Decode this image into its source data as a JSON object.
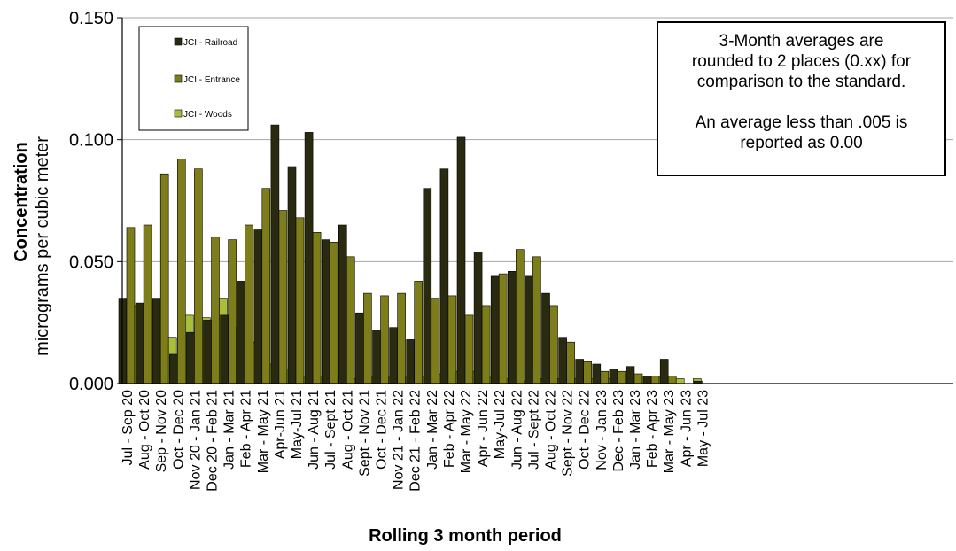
{
  "chart_data": {
    "type": "bar",
    "title": "",
    "xlabel": "Rolling 3 month period",
    "ylabel_bold": "Concentration",
    "ylabel_units": "micrograms per cubic meter",
    "ylim": [
      0,
      0.15
    ],
    "yticks": [
      "0.000",
      "0.050",
      "0.100",
      "0.150"
    ],
    "grid": true,
    "legend_position": "top-left",
    "categories": [
      "Jul - Sep 20",
      "Aug - Oct 20",
      "Sep - Nov 20",
      "Oct - Dec 20",
      "Nov 20 - Jan 21",
      "Dec 20 - Feb 21",
      "Jan - Mar 21",
      "Feb - Apr 21",
      "Mar - May 21",
      "Apr-Jun 21",
      "May-Jul 21",
      "Jun - Aug 21",
      "Jul - Sept 21",
      "Aug - Oct 21",
      "Sept - Nov 21",
      "Oct - Dec 21",
      "Nov 21 - Jan 22",
      "Dec 21 - Feb 22",
      "Jan - Mar 22",
      "Feb - Apr 22",
      "Mar - May 22",
      "Apr - Jun 22",
      "May-Jul 22",
      "Jun - Aug 22",
      "Jul - Sept 22",
      "Aug - Oct 22",
      "Sept - Nov 22",
      "Oct - Dec 22",
      "Nov - Jan 23",
      "Dec - Feb 23",
      "Jan - Mar 23",
      "Feb - Apr 23",
      "Mar - May 23",
      "Apr - Jun 23",
      "May - Jul 23"
    ],
    "series": [
      {
        "name": "JCI - Railroad",
        "color": "#2a2a10",
        "values": [
          0.035,
          0.033,
          0.035,
          0.012,
          0.021,
          0.026,
          0.028,
          0.042,
          0.063,
          0.106,
          0.089,
          0.103,
          0.059,
          0.065,
          0.029,
          0.022,
          0.023,
          0.018,
          0.08,
          0.088,
          0.101,
          0.054,
          0.044,
          0.046,
          0.044,
          0.037,
          0.019,
          0.01,
          0.008,
          0.006,
          0.007,
          0.003,
          0.01,
          0.0,
          0.001
        ]
      },
      {
        "name": "JCI - Entrance",
        "color": "#7d7d1a",
        "values": [
          0.064,
          0.065,
          0.086,
          0.092,
          0.088,
          0.06,
          0.059,
          0.065,
          0.08,
          0.071,
          0.068,
          0.062,
          0.058,
          0.052,
          0.037,
          0.036,
          0.037,
          0.042,
          0.035,
          0.036,
          0.028,
          0.032,
          0.045,
          0.055,
          0.052,
          0.032,
          0.017,
          0.009,
          0.005,
          0.005,
          0.004,
          0.003,
          0.003,
          0.0,
          0.0
        ]
      },
      {
        "name": "JCI - Woods",
        "color": "#a9bf3c",
        "values": [
          0.032,
          0.034,
          0.019,
          0.028,
          0.027,
          0.035,
          0.023,
          0.017,
          0.008,
          0.006,
          0.003,
          0.003,
          0.002,
          0.002,
          0.003,
          0.003,
          0.003,
          0.003,
          0.004,
          0.005,
          0.005,
          0.003,
          0.002,
          0.001,
          0.002,
          0.002,
          0.002,
          0.002,
          0.002,
          0.004,
          0.003,
          0.003,
          0.002,
          0.002,
          0.0
        ]
      }
    ],
    "annotation": {
      "line1": "3-Month averages are",
      "line2": "rounded to 2 places (0.xx) for",
      "line3": "comparison to the standard.",
      "line4": "An average less than  .005 is",
      "line5": "reported as 0.00"
    }
  }
}
